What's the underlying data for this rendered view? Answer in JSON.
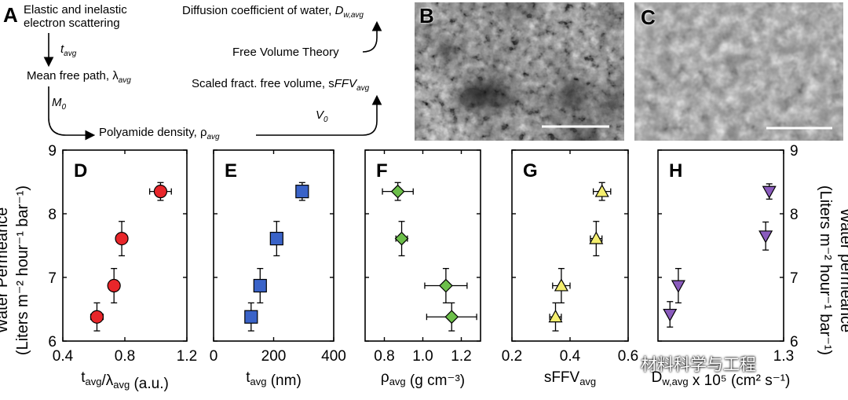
{
  "panel_labels": {
    "A": "A",
    "B": "B",
    "C": "C"
  },
  "flow": {
    "scattering_line1": "Elastic and inelastic",
    "scattering_line2": "electron scattering",
    "t_avg": "t",
    "t_avg_sub": "avg",
    "mfp": "Mean free path, λ",
    "mfp_sub": "avg",
    "m0": "M",
    "m0_sub": "0",
    "density": "Polyamide density, ρ",
    "density_sub": "avg",
    "v0": "V",
    "v0_sub": "0",
    "sffv": "Scaled fract. free volume, s",
    "sffv_ital": "FFV",
    "sffv_sub": "avg",
    "fvt": "Free Volume Theory",
    "diff": "Diffusion coefficient of water, ",
    "diff_ital": "D",
    "diff_sub": "w,avg"
  },
  "watermark": "材料科学与工程",
  "y_axis_left": {
    "line1": "Water Permeance",
    "line2": "(Liters m⁻² hour⁻¹ bar⁻¹)"
  },
  "y_axis_right": {
    "line1": "Water permeance",
    "line2": "(Liters m⁻² hour⁻¹ bar⁻¹)"
  },
  "chart_data": [
    {
      "panel": "D",
      "type": "scatter",
      "marker": "circle",
      "color": "#e8262a",
      "xlim": [
        0.4,
        1.2
      ],
      "ylim": [
        6,
        9
      ],
      "xticks": [
        "0.4",
        "0.8",
        "1.2"
      ],
      "xtick_values": [
        0.4,
        0.8,
        1.2
      ],
      "yticks": [
        "6",
        "7",
        "8",
        "9"
      ],
      "xlabel_main": "t",
      "xlabel_sub": "avg",
      "xlabel_mid": "/λ",
      "xlabel_sub2": "avg",
      "xlabel_tail": " (a.u.)",
      "points": [
        {
          "x": 0.62,
          "y": 6.38,
          "xerr": 0.04,
          "yerr": 0.22
        },
        {
          "x": 0.73,
          "y": 6.87,
          "xerr": 0.03,
          "yerr": 0.27
        },
        {
          "x": 0.78,
          "y": 7.61,
          "xerr": 0.03,
          "yerr": 0.27
        },
        {
          "x": 1.03,
          "y": 8.35,
          "xerr": 0.07,
          "yerr": 0.14
        }
      ]
    },
    {
      "panel": "E",
      "type": "scatter",
      "marker": "square",
      "color": "#3a63c8",
      "xlim": [
        0,
        400
      ],
      "ylim": [
        6,
        9
      ],
      "xticks": [
        "0",
        "200",
        "400"
      ],
      "xtick_values": [
        0,
        200,
        400
      ],
      "yticks": [],
      "xlabel_main": "t",
      "xlabel_sub": "avg",
      "xlabel_mid": "",
      "xlabel_sub2": "",
      "xlabel_tail": " (nm)",
      "points": [
        {
          "x": 125,
          "y": 6.38,
          "xerr": 0,
          "yerr": 0.22
        },
        {
          "x": 155,
          "y": 6.87,
          "xerr": 0,
          "yerr": 0.27
        },
        {
          "x": 210,
          "y": 7.61,
          "xerr": 0,
          "yerr": 0.27
        },
        {
          "x": 295,
          "y": 8.35,
          "xerr": 0,
          "yerr": 0.14
        }
      ]
    },
    {
      "panel": "F",
      "type": "scatter",
      "marker": "diamond",
      "color": "#6cbf4a",
      "xlim": [
        0.7,
        1.3
      ],
      "ylim": [
        6,
        9
      ],
      "xticks": [
        "0.8",
        "1.0",
        "1.2"
      ],
      "xtick_values": [
        0.8,
        1.0,
        1.2
      ],
      "yticks": [],
      "xlabel_main": "ρ",
      "xlabel_sub": "avg",
      "xlabel_mid": "",
      "xlabel_sub2": "",
      "xlabel_tail": " (g cm⁻³)",
      "points": [
        {
          "x": 1.15,
          "y": 6.38,
          "xerr": 0.13,
          "yerr": 0.22
        },
        {
          "x": 1.12,
          "y": 6.87,
          "xerr": 0.11,
          "yerr": 0.27
        },
        {
          "x": 0.89,
          "y": 7.61,
          "xerr": 0.03,
          "yerr": 0.27
        },
        {
          "x": 0.87,
          "y": 8.35,
          "xerr": 0.08,
          "yerr": 0.14
        }
      ]
    },
    {
      "panel": "G",
      "type": "scatter",
      "marker": "triangle-up",
      "color": "#f4ee6e",
      "xlim": [
        0.2,
        0.6
      ],
      "ylim": [
        6,
        9
      ],
      "xticks": [
        "0.2",
        "0.4",
        "0.6"
      ],
      "xtick_values": [
        0.2,
        0.4,
        0.6
      ],
      "yticks": [],
      "xlabel_main": "sFFV",
      "xlabel_sub": "avg",
      "xlabel_mid": "",
      "xlabel_sub2": "",
      "xlabel_tail": "",
      "points": [
        {
          "x": 0.35,
          "y": 6.38,
          "xerr": 0.02,
          "yerr": 0.22
        },
        {
          "x": 0.37,
          "y": 6.87,
          "xerr": 0.03,
          "yerr": 0.27
        },
        {
          "x": 0.49,
          "y": 7.61,
          "xerr": 0.02,
          "yerr": 0.27
        },
        {
          "x": 0.51,
          "y": 8.35,
          "xerr": 0.03,
          "yerr": 0.14
        }
      ]
    },
    {
      "panel": "H",
      "type": "scatter",
      "marker": "triangle-down",
      "color": "#8a5bbd",
      "xlim": [
        0.25,
        1.3
      ],
      "ylim": [
        6,
        9
      ],
      "xticks": [
        "1.3"
      ],
      "xtick_values": [
        1.3
      ],
      "yticks": [
        "6",
        "7",
        "8",
        "9"
      ],
      "xlabel_main": "D",
      "xlabel_sub": "w,avg",
      "xlabel_mid": "",
      "xlabel_sub2": "",
      "xlabel_tail": " x 10⁵ (cm² s⁻¹)",
      "points": [
        {
          "x": 0.35,
          "y": 6.42,
          "xerr": 0,
          "yerr": 0.2
        },
        {
          "x": 0.42,
          "y": 6.87,
          "xerr": 0,
          "yerr": 0.27
        },
        {
          "x": 1.15,
          "y": 7.65,
          "xerr": 0,
          "yerr": 0.22
        },
        {
          "x": 1.18,
          "y": 8.35,
          "xerr": 0,
          "yerr": 0.12
        }
      ]
    }
  ]
}
